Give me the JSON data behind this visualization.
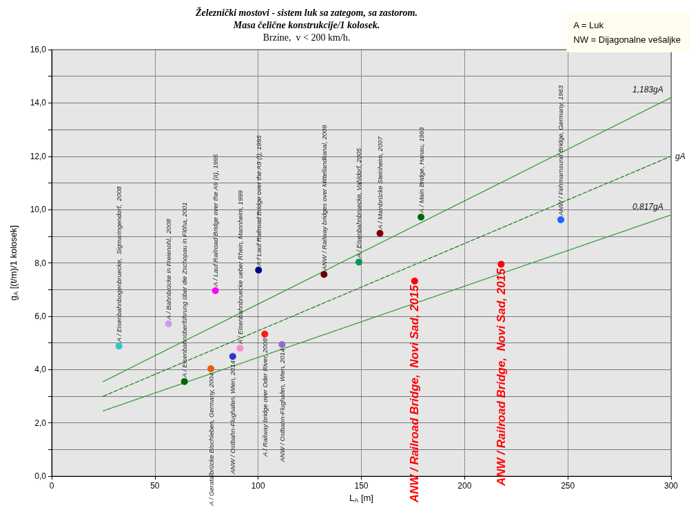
{
  "chart_data": {
    "type": "scatter",
    "title": "Železnički mostovi - sistem luk sa zategom, sa zastorom.\nMasa čelične konstrukcije/1 kolosek.",
    "subtitle": "Brzine,  v < 200 km/h.",
    "xlabel": "L$_{A}$ [m]",
    "ylabel": "g$_{A}$ [(t/m)/1 kolosek]",
    "annotations": [
      "A = Luk",
      "NW = Dijagonalne vešaljke"
    ],
    "xlim": [
      0,
      300
    ],
    "xticks": [
      0,
      50,
      100,
      150,
      200,
      250,
      300
    ],
    "ylim": [
      0,
      16
    ],
    "yticks": [
      {
        "value": 0,
        "label": "0,0"
      },
      {
        "value": 1,
        "label": null
      },
      {
        "value": 2,
        "label": "2,0"
      },
      {
        "value": 3,
        "label": null
      },
      {
        "value": 4,
        "label": "4,0"
      },
      {
        "value": 5,
        "label": null
      },
      {
        "value": 6,
        "label": "6,0"
      },
      {
        "value": 7,
        "label": null
      },
      {
        "value": 8,
        "label": "8,0"
      },
      {
        "value": 9,
        "label": null
      },
      {
        "value": 10,
        "label": "10,0"
      },
      {
        "value": 11,
        "label": null
      },
      {
        "value": 12,
        "label": "12,0"
      },
      {
        "value": 13,
        "label": null
      },
      {
        "value": 14,
        "label": "14,0"
      },
      {
        "value": 15,
        "label": null
      },
      {
        "value": 16,
        "label": "16,0"
      }
    ],
    "grid": true,
    "marker": "circle",
    "series": [
      {
        "name": "A / Eisenbahnbogenbruecke,  Sigmaringendorf,  2008",
        "color": "#33c6c6",
        "x": [
          32.6
        ],
        "values": [
          4.88
        ]
      },
      {
        "name": "A / Bahnbrücke in Freienohl,  2008",
        "color": "#cc99ee",
        "x": [
          56.6
        ],
        "values": [
          5.72
        ]
      },
      {
        "name": "A / Eisenbahnüberführung über die Zschopau in Flöha, 2001",
        "color": "#006600",
        "x": [
          64.3
        ],
        "values": [
          3.55
        ]
      },
      {
        "name": "A / Geratalbrücke Bischleben, Germany, 2004",
        "color": "#e0600f",
        "x": [
          77.1
        ],
        "values": [
          4.03
        ]
      },
      {
        "name": "A / Lauf Railroad Bridge over the A9 (II), 1995",
        "color": "#ff00ff",
        "x": [
          79.3
        ],
        "values": [
          6.96
        ]
      },
      {
        "name": "ANW / Ostbahn-Flughafen, Wien, 2014",
        "color": "#3333cc",
        "x": [
          87.7
        ],
        "values": [
          4.49
        ]
      },
      {
        "name": "A / Eisenbahnbruecke ueber Rhein, Mannheim, 1999",
        "color": "#ff88cc",
        "x": [
          91.2
        ],
        "values": [
          4.8
        ]
      },
      {
        "name": "A / Lauf Railroad Bridge over the A9 (I), 1995",
        "color": "#000080",
        "x": [
          100.2
        ],
        "values": [
          7.73
        ]
      },
      {
        "name": "A / Railway bridge over Oder River, 2008",
        "color": "#ff1a1a",
        "x": [
          103.2
        ],
        "values": [
          5.33
        ]
      },
      {
        "name": "ANW / Ostbahn-Flughafen, Wien, 2014",
        "color": "#9966cc",
        "x": [
          111.6
        ],
        "values": [
          4.94
        ]
      },
      {
        "name": "ANW / Railway bridges over Mittellandkanal, 2009",
        "color": "#660000",
        "x": [
          131.9
        ],
        "values": [
          7.57
        ]
      },
      {
        "name": "A / Eisenbahnbruecke, Vahldorf, 2005",
        "color": "#009955",
        "x": [
          148.8
        ],
        "values": [
          8.03
        ]
      },
      {
        "name": "A / Mainbrücke Steinheim, 2007",
        "color": "#800000",
        "x": [
          159.0
        ],
        "values": [
          9.11
        ]
      },
      {
        "name": "ANW / Railroad Bridge,  Novi Sad, 2015",
        "color": "#ff0000",
        "x": [
          175.8
        ],
        "values": [
          7.32
        ]
      },
      {
        "name": "A / Main Bridge, Hanau, 1993",
        "color": "#006600",
        "x": [
          178.9
        ],
        "values": [
          9.72
        ]
      },
      {
        "name": "ANW / Railroad Bridge,  Novi Sad, 2015",
        "color": "#ff0000",
        "x": [
          217.7
        ],
        "values": [
          7.95
        ]
      },
      {
        "name": "ANW / Fehmarnsund Bridge, Germany, 1963",
        "color": "#1a66ff",
        "x": [
          246.6
        ],
        "values": [
          9.62
        ]
      },
      {
        "name": "1,183gA",
        "type": "line",
        "marker": "none",
        "line_style": "dotted",
        "color": "#2e9a2e",
        "x": [
          25,
          300
        ],
        "values": [
          3.55,
          14.2
        ]
      },
      {
        "name": "gA",
        "type": "line",
        "marker": "none",
        "line_style": "dashed",
        "color": "#2e8a2e",
        "x": [
          25,
          300
        ],
        "values": [
          3.0,
          12.0
        ]
      },
      {
        "name": "0,817gA",
        "type": "line",
        "marker": "none",
        "line_style": "dotted",
        "color": "#2e9a2e",
        "x": [
          25,
          300
        ],
        "values": [
          2.45,
          9.8
        ]
      }
    ]
  }
}
